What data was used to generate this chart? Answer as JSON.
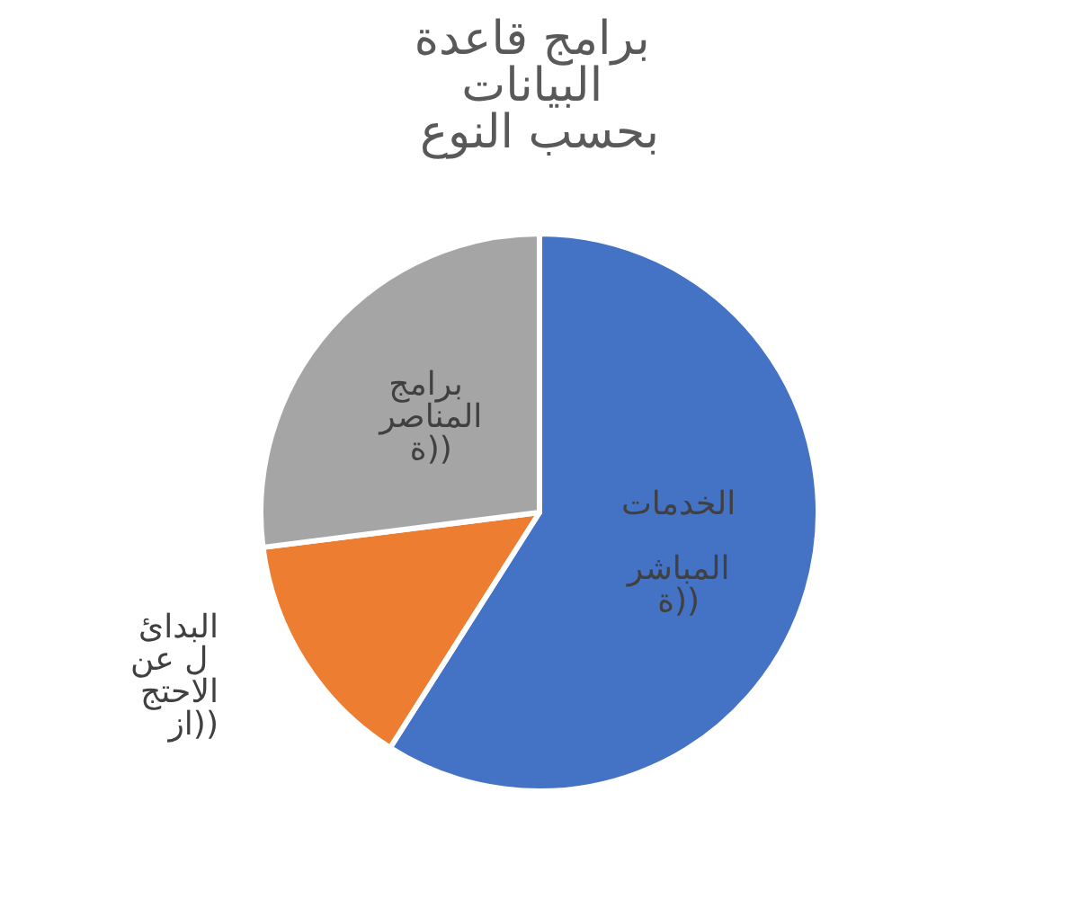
{
  "chart_data": {
    "type": "pie",
    "title": "برامج قاعدة البيانات بحسب النوع",
    "categories": [
      "الخدمات المباشرة))",
      "البدائل عن الاحتجاز))",
      "برامج المناصرة))"
    ],
    "values": [
      59,
      14,
      27
    ],
    "colors": [
      "#4472c4",
      "#ed7d31",
      "#a5a5a5"
    ],
    "legend": false
  }
}
